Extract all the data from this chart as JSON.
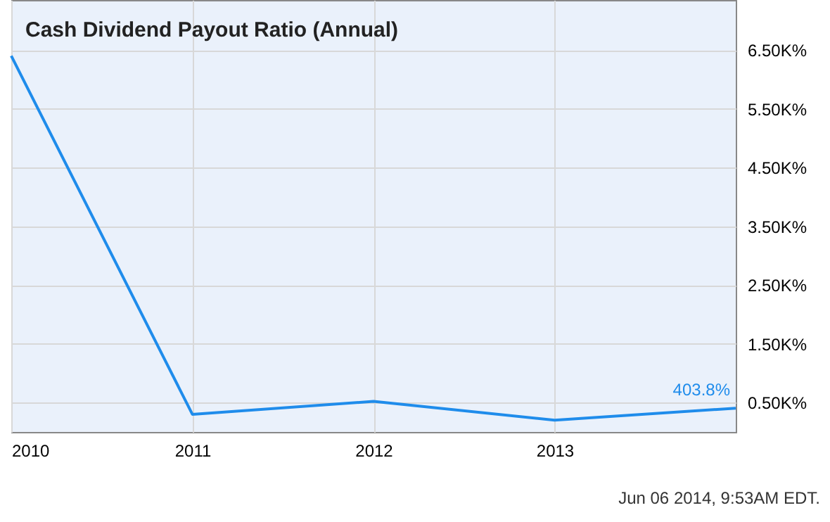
{
  "chart_data": {
    "type": "line",
    "title": "Cash Dividend Payout Ratio (Annual)",
    "x": [
      2010,
      2011,
      2012,
      2013,
      2014
    ],
    "series": [
      {
        "color": "#1f8ceb",
        "values": [
          6400,
          300,
          520,
          200,
          403.8
        ],
        "value_labels": [
          null,
          null,
          null,
          null,
          "403.8%"
        ]
      }
    ],
    "xlim": [
      2010,
      2014
    ],
    "xticks": [
      2010,
      2011,
      2012,
      2013
    ],
    "ylim": [
      0,
      7350
    ],
    "yticks": [
      {
        "value": 500,
        "label": "0.50K%"
      },
      {
        "value": 1500,
        "label": "1.50K%"
      },
      {
        "value": 2500,
        "label": "2.50K%"
      },
      {
        "value": 3500,
        "label": "3.50K%"
      },
      {
        "value": 4500,
        "label": "4.50K%"
      },
      {
        "value": 5500,
        "label": "5.50K%"
      },
      {
        "value": 6500,
        "label": "6.50K%"
      }
    ],
    "grid": true,
    "marker": "none",
    "line_style": "solid",
    "annotations": [
      "Jun 06 2014, 9:53AM EDT."
    ]
  }
}
